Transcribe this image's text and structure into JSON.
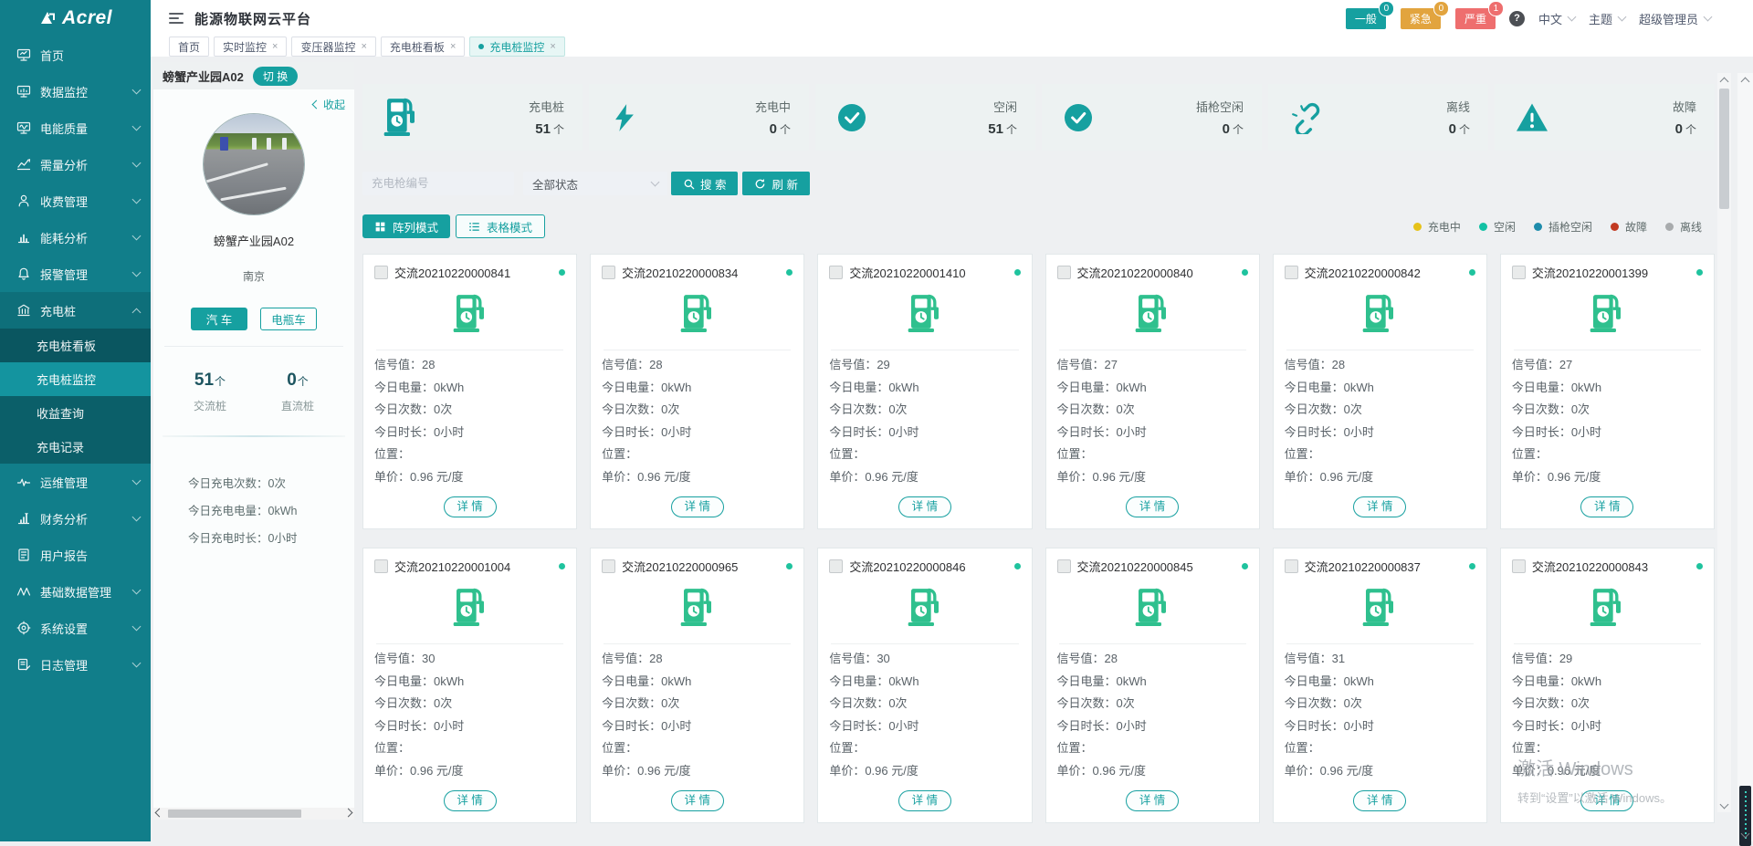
{
  "app": {
    "logo_text": "Acrel",
    "title": "能源物联网云平台"
  },
  "header": {
    "alarms": [
      {
        "label": "一般",
        "count": "0",
        "color": "#16a0a0"
      },
      {
        "label": "紧急",
        "count": "0",
        "color": "#e2a43e"
      },
      {
        "label": "严重",
        "count": "1",
        "color": "#ee6e6e"
      }
    ],
    "help": "?",
    "language": "中文",
    "theme": "主题",
    "user": "超级管理员"
  },
  "tabs": [
    {
      "label": "首页",
      "closable": false,
      "active": false
    },
    {
      "label": "实时监控",
      "closable": true,
      "active": false
    },
    {
      "label": "变压器监控",
      "closable": true,
      "active": false
    },
    {
      "label": "充电桩看板",
      "closable": true,
      "active": false
    },
    {
      "label": "充电桩监控",
      "closable": true,
      "active": true
    }
  ],
  "sidebar": {
    "items": [
      {
        "label": "首页",
        "icon": "home"
      },
      {
        "label": "数据监控",
        "icon": "monitor",
        "expandable": true
      },
      {
        "label": "电能质量",
        "icon": "quality",
        "expandable": true
      },
      {
        "label": "需量分析",
        "icon": "demand",
        "expandable": true
      },
      {
        "label": "收费管理",
        "icon": "fee",
        "expandable": true
      },
      {
        "label": "能耗分析",
        "icon": "energy",
        "expandable": true
      },
      {
        "label": "报警管理",
        "icon": "alarm",
        "expandable": true
      },
      {
        "label": "充电桩",
        "icon": "pilebank",
        "expandable": true,
        "expanded": true,
        "children": [
          {
            "label": "充电桩看板",
            "shade": true
          },
          {
            "label": "充电桩监控",
            "active": true
          },
          {
            "label": "收益查询"
          },
          {
            "label": "充电记录"
          }
        ]
      },
      {
        "label": "运维管理",
        "icon": "ops",
        "expandable": true
      },
      {
        "label": "财务分析",
        "icon": "finance",
        "expandable": true
      },
      {
        "label": "用户报告",
        "icon": "report"
      },
      {
        "label": "基础数据管理",
        "icon": "basedata",
        "expandable": true
      },
      {
        "label": "系统设置",
        "icon": "settings",
        "expandable": true
      },
      {
        "label": "日志管理",
        "icon": "logs",
        "expandable": true
      }
    ]
  },
  "station": {
    "name": "螃蟹产业园A02",
    "switch_label": "切 换",
    "collapse_label": "收起",
    "title": "螃蟹产业园A02",
    "city": "南京",
    "vehicle_buttons": [
      {
        "label": "汽 车",
        "active": true
      },
      {
        "label": "电瓶车",
        "active": false
      }
    ],
    "pile_counts": [
      {
        "value": "51",
        "unit": "个",
        "label": "交流桩"
      },
      {
        "value": "0",
        "unit": "个",
        "label": "直流桩"
      }
    ],
    "today": [
      {
        "label": "今日充电次数",
        "value": "0次"
      },
      {
        "label": "今日充电电量",
        "value": "0kWh"
      },
      {
        "label": "今日充电时长",
        "value": "0小时"
      }
    ]
  },
  "stats": [
    {
      "label": "充电桩",
      "value": "51",
      "unit": "个",
      "icon": "pile"
    },
    {
      "label": "充电中",
      "value": "0",
      "unit": "个",
      "icon": "bolt"
    },
    {
      "label": "空闲",
      "value": "51",
      "unit": "个",
      "icon": "check"
    },
    {
      "label": "插枪空闲",
      "value": "0",
      "unit": "个",
      "icon": "check"
    },
    {
      "label": "离线",
      "value": "0",
      "unit": "个",
      "icon": "offline"
    },
    {
      "label": "故障",
      "value": "0",
      "unit": "个",
      "icon": "warning"
    }
  ],
  "filter": {
    "gun_placeholder": "充电枪编号",
    "status_value": "全部状态",
    "search_label": "搜 索",
    "refresh_label": "刷 新"
  },
  "modes": [
    {
      "label": "阵列模式",
      "icon": "gridmode",
      "active": true
    },
    {
      "label": "表格模式",
      "icon": "listmode",
      "active": false
    }
  ],
  "legend": [
    {
      "label": "充电中",
      "color": "#e6c21a"
    },
    {
      "label": "空闲",
      "color": "#12c1a4"
    },
    {
      "label": "插枪空闲",
      "color": "#1e8cac"
    },
    {
      "label": "故障",
      "color": "#c23a22"
    },
    {
      "label": "离线",
      "color": "#a8abad"
    }
  ],
  "card_fields": {
    "colon": "：",
    "signal": "信号值",
    "energy": "今日电量",
    "count": "今日次数",
    "duration": "今日时长",
    "location": "位置",
    "price": "单价",
    "detail": "详 情"
  },
  "cards": [
    {
      "id": "交流20210220000841",
      "signal": "28",
      "energy": "0kWh",
      "count": "0次",
      "duration": "0小时",
      "location": "",
      "price": "0.96 元/度",
      "status_color": "#1fc39e"
    },
    {
      "id": "交流20210220000834",
      "signal": "28",
      "energy": "0kWh",
      "count": "0次",
      "duration": "0小时",
      "location": "",
      "price": "0.96 元/度",
      "status_color": "#1fc39e"
    },
    {
      "id": "交流20210220001410",
      "signal": "29",
      "energy": "0kWh",
      "count": "0次",
      "duration": "0小时",
      "location": "",
      "price": "0.96 元/度",
      "status_color": "#1fc39e"
    },
    {
      "id": "交流20210220000840",
      "signal": "27",
      "energy": "0kWh",
      "count": "0次",
      "duration": "0小时",
      "location": "",
      "price": "0.96 元/度",
      "status_color": "#1fc39e"
    },
    {
      "id": "交流20210220000842",
      "signal": "28",
      "energy": "0kWh",
      "count": "0次",
      "duration": "0小时",
      "location": "",
      "price": "0.96 元/度",
      "status_color": "#1fc39e"
    },
    {
      "id": "交流20210220001399",
      "signal": "27",
      "energy": "0kWh",
      "count": "0次",
      "duration": "0小时",
      "location": "",
      "price": "0.96 元/度",
      "status_color": "#1fc39e"
    },
    {
      "id": "交流20210220001004",
      "signal": "30",
      "energy": "0kWh",
      "count": "0次",
      "duration": "0小时",
      "location": "",
      "price": "0.96 元/度",
      "status_color": "#1fc39e"
    },
    {
      "id": "交流20210220000965",
      "signal": "28",
      "energy": "0kWh",
      "count": "0次",
      "duration": "0小时",
      "location": "",
      "price": "0.96 元/度",
      "status_color": "#1fc39e"
    },
    {
      "id": "交流20210220000846",
      "signal": "30",
      "energy": "0kWh",
      "count": "0次",
      "duration": "0小时",
      "location": "",
      "price": "0.96 元/度",
      "status_color": "#1fc39e"
    },
    {
      "id": "交流20210220000845",
      "signal": "28",
      "energy": "0kWh",
      "count": "0次",
      "duration": "0小时",
      "location": "",
      "price": "0.96 元/度",
      "status_color": "#1fc39e"
    },
    {
      "id": "交流20210220000837",
      "signal": "31",
      "energy": "0kWh",
      "count": "0次",
      "duration": "0小时",
      "location": "",
      "price": "0.96 元/度",
      "status_color": "#1fc39e"
    },
    {
      "id": "交流20210220000843",
      "signal": "29",
      "energy": "0kWh",
      "count": "0次",
      "duration": "0小时",
      "location": "",
      "price": "0.96 元/度",
      "status_color": "#1fc39e"
    }
  ],
  "watermark": {
    "line1": "激活 Windows",
    "line2": "转到“设置”以激活 Windows。"
  }
}
